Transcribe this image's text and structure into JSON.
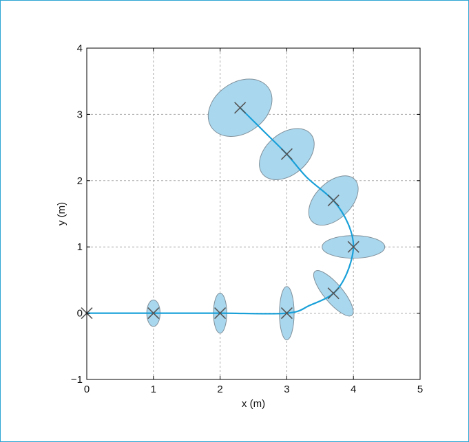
{
  "chart_data": {
    "type": "scatter",
    "xlabel": "x (m)",
    "ylabel": "y (m)",
    "xlim": [
      0,
      5
    ],
    "ylim": [
      -1,
      4
    ],
    "xticks": [
      "0",
      "1",
      "2",
      "3",
      "4",
      "5"
    ],
    "yticks": [
      "−1",
      "0",
      "1",
      "2",
      "3",
      "4"
    ],
    "grid": true,
    "colors": {
      "path": "#1aa0d8",
      "ellipse_fill": "#a9d7ee",
      "ellipse_stroke": "#7f8f99",
      "marker": "#555555"
    },
    "path": [
      [
        0,
        0
      ],
      [
        1,
        0
      ],
      [
        2,
        0
      ],
      [
        3,
        0
      ],
      [
        3.35,
        0.12
      ],
      [
        3.7,
        0.3
      ],
      [
        3.9,
        0.6
      ],
      [
        4,
        1
      ],
      [
        3.92,
        1.35
      ],
      [
        3.7,
        1.7
      ],
      [
        3.3,
        2.05
      ],
      [
        3,
        2.4
      ],
      [
        2.65,
        2.75
      ],
      [
        2.3,
        3.1
      ]
    ],
    "poses": [
      {
        "x": 0,
        "y": 0,
        "semi_major": 0,
        "semi_minor": 0,
        "angle_deg": 0
      },
      {
        "x": 1,
        "y": 0,
        "semi_major": 0.2,
        "semi_minor": 0.1,
        "angle_deg": 90
      },
      {
        "x": 2,
        "y": 0,
        "semi_major": 0.3,
        "semi_minor": 0.1,
        "angle_deg": 90
      },
      {
        "x": 3,
        "y": 0,
        "semi_major": 0.4,
        "semi_minor": 0.11,
        "angle_deg": 90
      },
      {
        "x": 3.7,
        "y": 0.3,
        "semi_major": 0.43,
        "semi_minor": 0.14,
        "angle_deg": -50
      },
      {
        "x": 4,
        "y": 1,
        "semi_major": 0.47,
        "semi_minor": 0.17,
        "angle_deg": 0
      },
      {
        "x": 3.7,
        "y": 1.7,
        "semi_major": 0.45,
        "semi_minor": 0.27,
        "angle_deg": 45
      },
      {
        "x": 3,
        "y": 2.4,
        "semi_major": 0.47,
        "semi_minor": 0.31,
        "angle_deg": 40
      },
      {
        "x": 2.3,
        "y": 3.1,
        "semi_major": 0.52,
        "semi_minor": 0.38,
        "angle_deg": 35
      }
    ]
  }
}
